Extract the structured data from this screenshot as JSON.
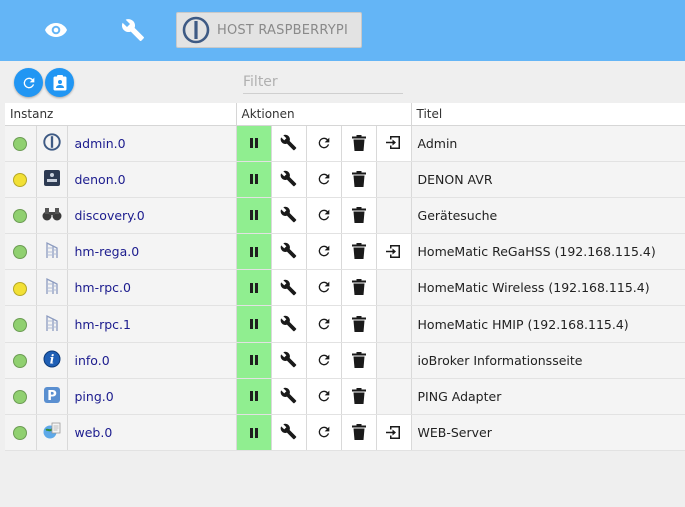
{
  "host": {
    "label": "HOST RASPBERRYPI"
  },
  "filter": {
    "placeholder": "Filter"
  },
  "table": {
    "headers": [
      "Instanz",
      "Aktionen",
      "Titel"
    ],
    "rows": [
      {
        "status": "#90d070",
        "icon": "iobroker-logo-icon",
        "name": "admin.0",
        "link": true,
        "title": "Admin"
      },
      {
        "status": "#f2e035",
        "icon": "denon-icon",
        "name": "denon.0",
        "link": false,
        "title": "DENON AVR"
      },
      {
        "status": "#90d070",
        "icon": "binoculars-icon",
        "name": "discovery.0",
        "link": false,
        "title": "Gerätesuche"
      },
      {
        "status": "#90d070",
        "icon": "homematic-icon",
        "name": "hm-rega.0",
        "link": true,
        "title": "HomeMatic ReGaHSS (192.168.115.4)"
      },
      {
        "status": "#f2e035",
        "icon": "homematic-icon",
        "name": "hm-rpc.0",
        "link": false,
        "title": "HomeMatic Wireless (192.168.115.4)"
      },
      {
        "status": "#90d070",
        "icon": "homematic-icon",
        "name": "hm-rpc.1",
        "link": false,
        "title": "HomeMatic HMIP (192.168.115.4)"
      },
      {
        "status": "#90d070",
        "icon": "info-icon",
        "name": "info.0",
        "link": false,
        "title": "ioBroker Informationsseite"
      },
      {
        "status": "#90d070",
        "icon": "ping-icon",
        "name": "ping.0",
        "link": false,
        "title": "PING Adapter"
      },
      {
        "status": "#90d070",
        "icon": "web-icon",
        "name": "web.0",
        "link": true,
        "title": "WEB-Server"
      }
    ]
  }
}
